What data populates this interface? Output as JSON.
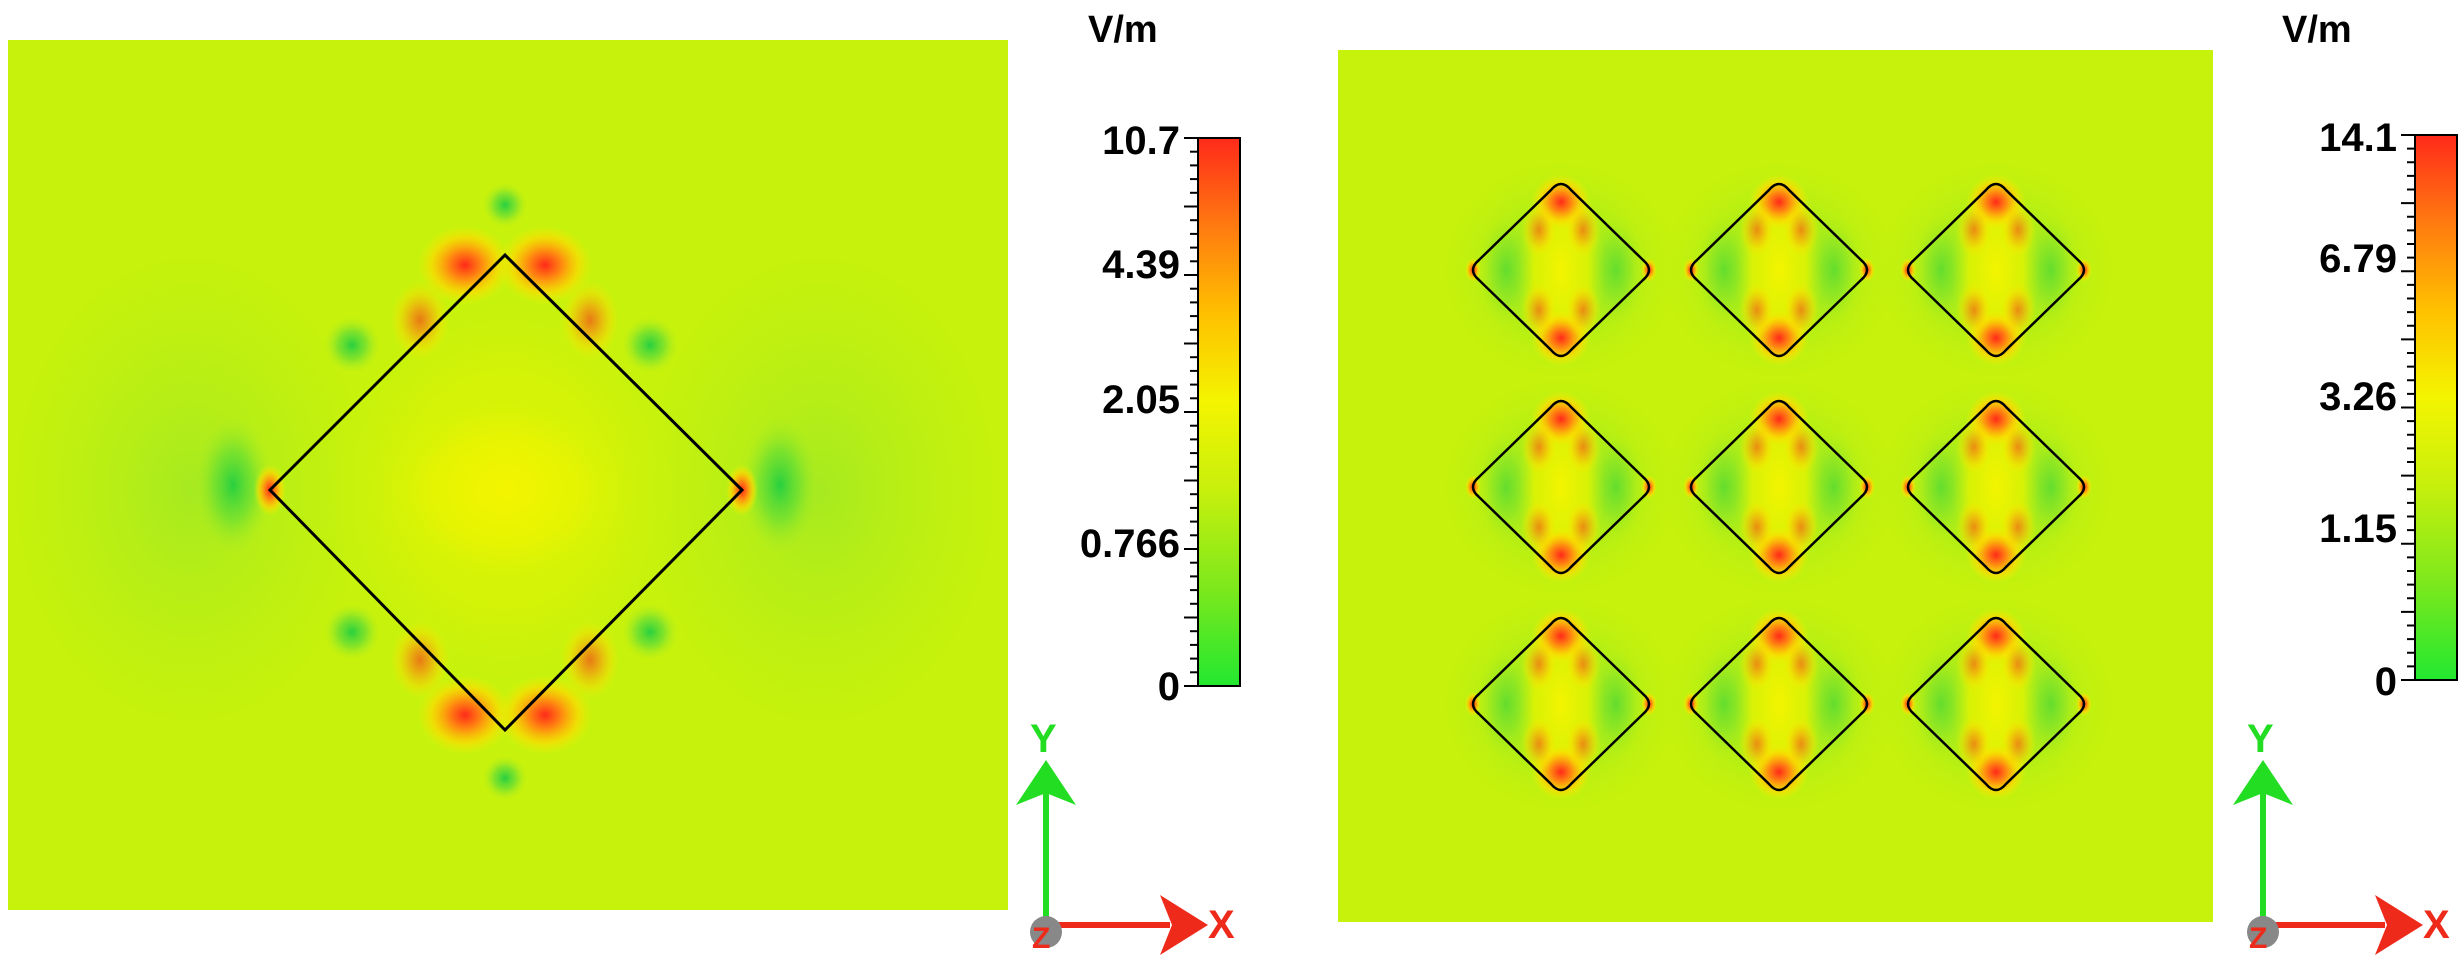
{
  "panels": [
    {
      "id": "single",
      "unit": "V/m",
      "colorbar_ticks": [
        "10.7",
        "4.39",
        "2.05",
        "0.766",
        "0"
      ]
    },
    {
      "id": "array",
      "unit": "V/m",
      "colorbar_ticks": [
        "14.1",
        "6.79",
        "3.26",
        "1.15",
        "0"
      ]
    }
  ],
  "axes": {
    "y": "Y",
    "x": "X",
    "z": "Z"
  },
  "colors": {
    "background_field": "#c6f20c",
    "low": "#22dd22",
    "mid": "#f2f200",
    "high": "#ff2a1a"
  }
}
